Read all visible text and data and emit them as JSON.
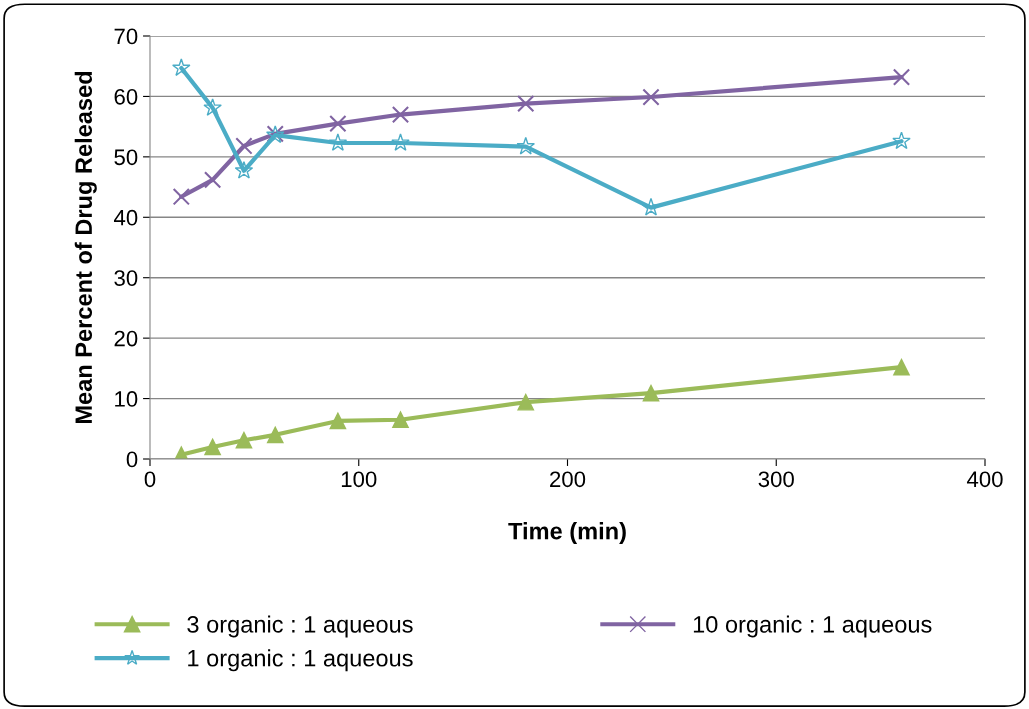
{
  "chart_data": {
    "type": "line",
    "xlabel": "Time (min)",
    "ylabel": "Mean Percent of Drug Released",
    "x": [
      15,
      30,
      45,
      60,
      90,
      120,
      180,
      240,
      360
    ],
    "series": [
      {
        "name": "3 organic : 1 aqueous",
        "color": "#9bbb59",
        "marker": "triangle",
        "values": [
          0.7,
          2.0,
          3.1,
          4.0,
          6.3,
          6.5,
          9.4,
          10.9,
          15.2
        ]
      },
      {
        "name": "10 organic : 1 aqueous",
        "color": "#8064a2",
        "marker": "cross",
        "values": [
          43.4,
          46.2,
          51.8,
          53.8,
          55.5,
          57.0,
          58.8,
          59.9,
          63.2
        ]
      },
      {
        "name": "1 organic : 1 aqueous",
        "color": "#4bacc6",
        "marker": "star",
        "values": [
          64.7,
          58.1,
          47.7,
          53.6,
          52.3,
          52.3,
          51.7,
          41.6,
          52.6
        ]
      }
    ],
    "xlim": [
      0,
      400
    ],
    "xticks": [
      0,
      100,
      200,
      300,
      400
    ],
    "ylim": [
      0,
      70
    ],
    "yticks": [
      0,
      10,
      20,
      30,
      40,
      50,
      60,
      70
    ],
    "grid": "y",
    "legend": "bottom",
    "line_style": "solid"
  }
}
